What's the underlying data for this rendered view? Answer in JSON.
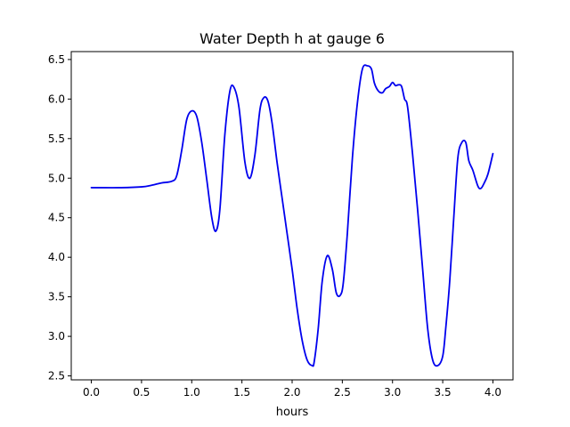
{
  "chart_data": {
    "type": "line",
    "title": "Water Depth h at gauge 6",
    "xlabel": "hours",
    "ylabel": "",
    "xlim": [
      -0.2,
      4.2
    ],
    "ylim": [
      2.45,
      6.6
    ],
    "xticks": [
      0.0,
      0.5,
      1.0,
      1.5,
      2.0,
      2.5,
      3.0,
      3.5,
      4.0
    ],
    "xtick_labels": [
      "0.0",
      "0.5",
      "1.0",
      "1.5",
      "2.0",
      "2.5",
      "3.0",
      "3.5",
      "4.0"
    ],
    "yticks": [
      2.5,
      3.0,
      3.5,
      4.0,
      4.5,
      5.0,
      5.5,
      6.0,
      6.5
    ],
    "ytick_labels": [
      "2.5",
      "3.0",
      "3.5",
      "4.0",
      "4.5",
      "5.0",
      "5.5",
      "6.0",
      "6.5"
    ],
    "grid": false,
    "legend": "none",
    "series": [
      {
        "color": "#0000ee",
        "x": [
          0.0,
          0.3,
          0.5,
          0.6,
          0.7,
          0.8,
          0.85,
          0.9,
          0.95,
          1.0,
          1.05,
          1.1,
          1.15,
          1.2,
          1.24,
          1.28,
          1.33,
          1.38,
          1.42,
          1.47,
          1.53,
          1.58,
          1.63,
          1.68,
          1.72,
          1.76,
          1.8,
          1.85,
          1.9,
          1.95,
          2.0,
          2.05,
          2.1,
          2.15,
          2.2,
          2.22,
          2.26,
          2.3,
          2.35,
          2.4,
          2.44,
          2.48,
          2.51,
          2.55,
          2.6,
          2.65,
          2.7,
          2.75,
          2.79,
          2.82,
          2.86,
          2.9,
          2.93,
          2.97,
          3.0,
          3.03,
          3.06,
          3.09,
          3.12,
          3.15,
          3.2,
          3.25,
          3.3,
          3.35,
          3.4,
          3.45,
          3.5,
          3.53,
          3.57,
          3.61,
          3.65,
          3.69,
          3.73,
          3.76,
          3.8,
          3.85,
          3.88,
          3.91,
          3.95,
          4.0
        ],
        "y": [
          4.88,
          4.88,
          4.89,
          4.91,
          4.94,
          4.96,
          5.03,
          5.35,
          5.74,
          5.85,
          5.78,
          5.45,
          4.98,
          4.5,
          4.33,
          4.6,
          5.55,
          6.1,
          6.15,
          5.9,
          5.2,
          5.0,
          5.3,
          5.87,
          6.02,
          5.97,
          5.7,
          5.2,
          4.75,
          4.3,
          3.85,
          3.35,
          2.95,
          2.7,
          2.63,
          2.68,
          3.1,
          3.7,
          4.02,
          3.85,
          3.55,
          3.52,
          3.68,
          4.3,
          5.25,
          5.95,
          6.38,
          6.42,
          6.38,
          6.2,
          6.1,
          6.08,
          6.13,
          6.16,
          6.21,
          6.17,
          6.18,
          6.16,
          6.0,
          5.9,
          5.3,
          4.6,
          3.85,
          3.1,
          2.7,
          2.63,
          2.75,
          3.1,
          3.7,
          4.5,
          5.25,
          5.45,
          5.45,
          5.22,
          5.1,
          4.9,
          4.87,
          4.93,
          5.05,
          5.31
        ]
      }
    ]
  }
}
